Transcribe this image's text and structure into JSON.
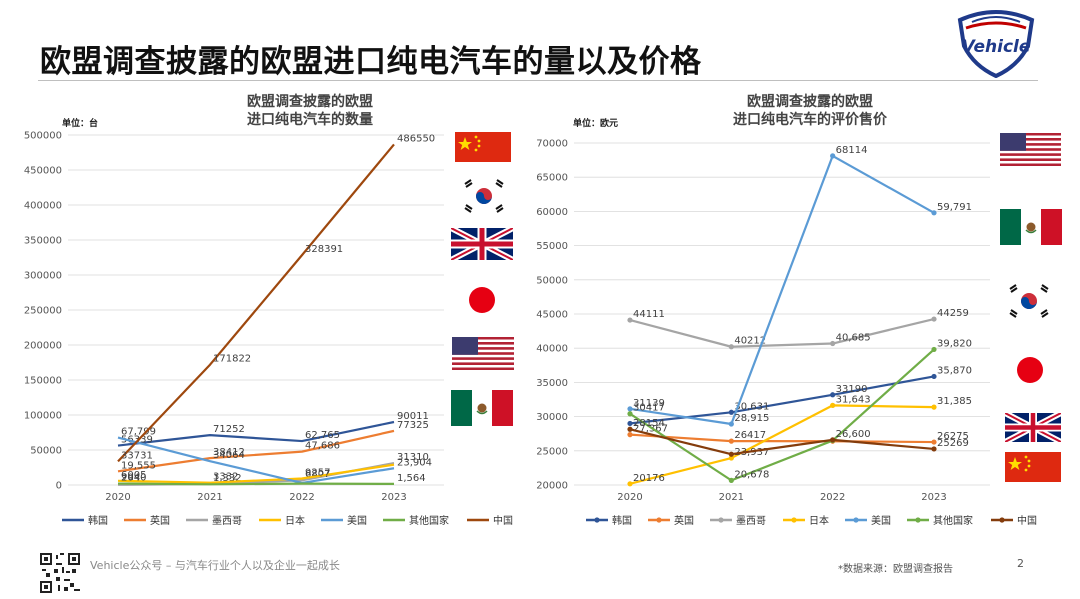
{
  "slide": {
    "title": "欧盟调查披露的欧盟进口纯电汽车的量以及价格",
    "brand": "Vehicle",
    "footer": "Vehicle公众号 – 与汽车行业个人以及企业一起成长",
    "source": "*数据来源：欧盟调查报告",
    "page": "2"
  },
  "chart_data": [
    {
      "type": "line",
      "title": "欧盟调查披露的欧盟\n进口纯电汽车的数量",
      "unit_label": "单位：台",
      "categories": [
        "2020",
        "2021",
        "2022",
        "2023"
      ],
      "ylim": [
        0,
        500000
      ],
      "yticks": [
        0,
        50000,
        100000,
        150000,
        200000,
        250000,
        300000,
        350000,
        400000,
        450000,
        500000
      ],
      "ytick_labels": [
        "0",
        "50000",
        "100000",
        "150000",
        "200000",
        "250000",
        "300000",
        "350000",
        "400000",
        "450000",
        "500000"
      ],
      "legend_position": "bottom",
      "grid": true,
      "series": [
        {
          "name": "韩国",
          "color": "#2f5597",
          "values": [
            56339,
            71252,
            62765,
            90011
          ],
          "labels": [
            "56339",
            "71252",
            "62,765",
            "90011"
          ]
        },
        {
          "name": "英国",
          "color": "#ed7d31",
          "values": [
            19555,
            38412,
            47686,
            77325
          ],
          "labels": [
            "19,555",
            "38412",
            "47,686",
            "77325"
          ]
        },
        {
          "name": "墨西哥",
          "color": "#a5a5a5",
          "values": [
            293,
            1332,
            6807,
            31310
          ],
          "labels": [
            "293",
            "1,332",
            "6807",
            "31310"
          ]
        },
        {
          "name": "日本",
          "color": "#ffc000",
          "values": [
            6005,
            3332,
            9257,
            29000
          ],
          "labels": [
            "6005",
            "3332",
            "9257",
            ""
          ]
        },
        {
          "name": "美国",
          "color": "#5b9bd5",
          "values": [
            67799,
            34064,
            3000,
            23904
          ],
          "labels": [
            "67,799",
            "34064",
            "",
            "23,904"
          ]
        },
        {
          "name": "其他国家",
          "color": "#70ad47",
          "values": [
            2040,
            1000,
            2000,
            1564
          ],
          "labels": [
            "2040",
            "",
            "",
            "1,564"
          ]
        },
        {
          "name": "中国",
          "color": "#9e480e",
          "values": [
            33731,
            171822,
            328391,
            486550
          ],
          "labels": [
            "33731",
            "171822",
            "328391",
            "486550"
          ]
        }
      ]
    },
    {
      "type": "line",
      "title": "欧盟调查披露的欧盟\n进口纯电汽车的评价售价",
      "unit_label": "单位：欧元",
      "categories": [
        "2020",
        "2021",
        "2022",
        "2023"
      ],
      "ylim": [
        20000,
        70000
      ],
      "yticks": [
        20000,
        25000,
        30000,
        35000,
        40000,
        45000,
        50000,
        55000,
        60000,
        65000,
        70000
      ],
      "ytick_labels": [
        "20000",
        "25000",
        "30000",
        "35000",
        "40000",
        "45000",
        "50000",
        "55000",
        "60000",
        "65000",
        "70000"
      ],
      "legend_position": "bottom",
      "grid": true,
      "series": [
        {
          "name": "韩国",
          "color": "#2f5597",
          "values": [
            29000,
            30631,
            33190,
            35870
          ],
          "labels": [
            "",
            "30,631",
            "33190",
            "35,870"
          ]
        },
        {
          "name": "英国",
          "color": "#ed7d31",
          "values": [
            27367,
            26417,
            26400,
            26275
          ],
          "labels": [
            "27,367",
            "26417",
            "",
            "26275"
          ]
        },
        {
          "name": "墨西哥",
          "color": "#a5a5a5",
          "values": [
            44111,
            40212,
            40685,
            44259
          ],
          "labels": [
            "44111",
            "40212",
            "40,685",
            "44259"
          ]
        },
        {
          "name": "日本",
          "color": "#ffc000",
          "values": [
            20176,
            23937,
            31643,
            31385
          ],
          "labels": [
            "20176",
            "23,937",
            "31,643",
            "31,385"
          ]
        },
        {
          "name": "美国",
          "color": "#5b9bd5",
          "values": [
            31139,
            28915,
            68114,
            59791
          ],
          "labels": [
            "31139",
            "28,915",
            "68114",
            "59,791"
          ]
        },
        {
          "name": "其他国家",
          "color": "#70ad47",
          "values": [
            30417,
            20678,
            26500,
            39820
          ],
          "labels": [
            "30417",
            "20,678",
            "",
            "39,820"
          ]
        },
        {
          "name": "中国",
          "color": "#843c0c",
          "values": [
            28154,
            24500,
            26600,
            25269
          ],
          "labels": [
            "28154",
            "",
            "26,600",
            "25269"
          ]
        }
      ]
    }
  ],
  "flags": {
    "left": [
      "china-flag",
      "south-korea-flag",
      "uk-flag",
      "japan-flag",
      "usa-flag",
      "mexico-flag"
    ],
    "right": [
      "usa-flag",
      "mexico-flag",
      "south-korea-flag",
      "japan-flag",
      "uk-flag",
      "china-flag"
    ]
  }
}
